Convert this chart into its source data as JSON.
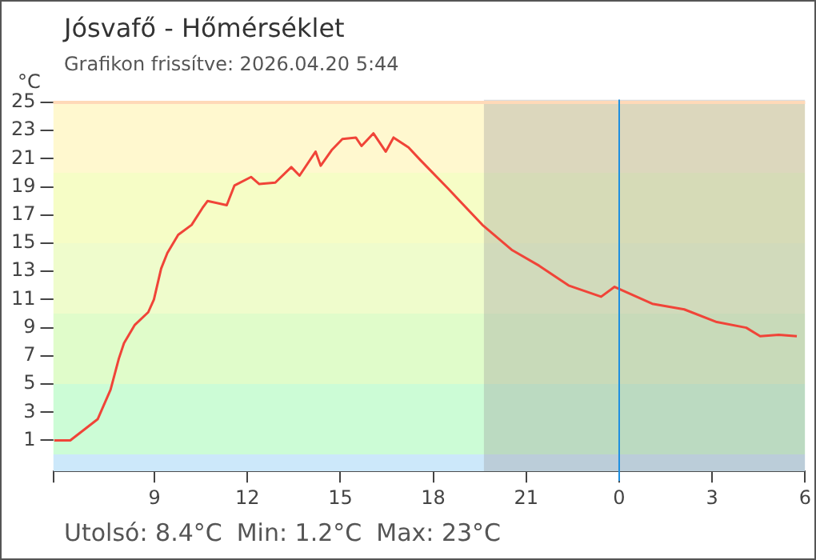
{
  "chart_data": {
    "type": "line",
    "title": "Jósvafő - Hőmérséklet",
    "subtitle": "Grafikon frissítve: 2026.04.20 5:44",
    "ylabel": "°C",
    "annotations": [
      "Utolsó: 8.4°C",
      "Min: 1.2°C",
      "Max: 23°C"
    ],
    "x": [
      "2026-04-19T05:46",
      "2026-04-19T06:17",
      "2026-04-19T07:10",
      "2026-04-19T07:35",
      "2026-04-19T07:51",
      "2026-04-19T08:01",
      "2026-04-19T08:22",
      "2026-04-19T08:48",
      "2026-04-19T08:59",
      "2026-04-19T09:13",
      "2026-04-19T09:25",
      "2026-04-19T09:46",
      "2026-04-19T10:12",
      "2026-04-19T10:33",
      "2026-04-19T10:43",
      "2026-04-19T11:20",
      "2026-04-19T11:35",
      "2026-04-19T12:07",
      "2026-04-19T12:23",
      "2026-04-19T12:54",
      "2026-04-19T13:25",
      "2026-04-19T13:41",
      "2026-04-19T14:12",
      "2026-04-19T14:22",
      "2026-04-19T14:43",
      "2026-04-19T15:04",
      "2026-04-19T15:30",
      "2026-04-19T15:41",
      "2026-04-19T16:04",
      "2026-04-19T16:28",
      "2026-04-19T16:43",
      "2026-04-19T17:12",
      "2026-04-19T17:35",
      "2026-04-19T18:28",
      "2026-04-19T19:35",
      "2026-04-19T20:33",
      "2026-04-19T21:25",
      "2026-04-19T22:22",
      "2026-04-19T23:25",
      "2026-04-19T23:51",
      "2026-04-20T01:04",
      "2026-04-20T02:06",
      "2026-04-20T03:09",
      "2026-04-20T04:06",
      "2026-04-20T04:33",
      "2026-04-20T05:09",
      "2026-04-20T05:44"
    ],
    "series": [
      {
        "color": "#f04438",
        "values": [
          1.0,
          1.0,
          2.5,
          4.6,
          6.8,
          7.9,
          9.2,
          10.1,
          11.0,
          13.2,
          14.3,
          15.6,
          16.3,
          17.5,
          18.0,
          17.7,
          19.1,
          19.7,
          19.2,
          19.3,
          20.4,
          19.8,
          21.5,
          20.5,
          21.6,
          22.4,
          22.5,
          21.9,
          22.8,
          21.5,
          22.5,
          21.8,
          20.9,
          18.9,
          16.3,
          14.5,
          13.4,
          12.0,
          11.2,
          11.9,
          10.7,
          10.3,
          9.4,
          9.0,
          8.4,
          8.5,
          8.4
        ]
      }
    ],
    "xlim": [
      "2026-04-19T05:44",
      "2026-04-20T06:00"
    ],
    "xticks": [
      {
        "value": "2026-04-19T05:44",
        "label": null
      },
      {
        "value": "2026-04-19T09:00",
        "label": "9"
      },
      {
        "value": "2026-04-19T12:00",
        "label": "12"
      },
      {
        "value": "2026-04-19T15:00",
        "label": "15"
      },
      {
        "value": "2026-04-19T18:00",
        "label": "18"
      },
      {
        "value": "2026-04-19T21:00",
        "label": "21"
      },
      {
        "value": "2026-04-20T00:00",
        "label": "0"
      },
      {
        "value": "2026-04-20T03:00",
        "label": "3"
      },
      {
        "value": "2026-04-20T06:00",
        "label": "6"
      }
    ],
    "ylim": [
      -1.2,
      25.2
    ],
    "yticks": [
      1,
      3,
      5,
      7,
      9,
      11,
      13,
      15,
      17,
      19,
      21,
      23,
      25
    ],
    "bands": [
      {
        "axis": "y",
        "from": -1.2,
        "to": 0,
        "color": "#cce8fa"
      },
      {
        "axis": "y",
        "from": 0,
        "to": 5,
        "color": "#ccfcd6"
      },
      {
        "axis": "y",
        "from": 5,
        "to": 10,
        "color": "#e0fcca"
      },
      {
        "axis": "y",
        "from": 10,
        "to": 15,
        "color": "#effccc"
      },
      {
        "axis": "y",
        "from": 15,
        "to": 20,
        "color": "#f6fdc6"
      },
      {
        "axis": "y",
        "from": 20,
        "to": 25,
        "color": "#fff8cf"
      },
      {
        "axis": "x",
        "from": "2026-04-19T19:38",
        "to": "2026-04-20T06:00",
        "color": "#9a9a9a"
      }
    ],
    "ref_lines": [
      {
        "axis": "y",
        "value": 25,
        "color": "#ffd9b8"
      },
      {
        "axis": "x",
        "value": "2026-04-20T00:00",
        "color": "#1e8fe0"
      }
    ],
    "grid": false,
    "legend": false,
    "marker": "none",
    "line_style": "solid"
  }
}
